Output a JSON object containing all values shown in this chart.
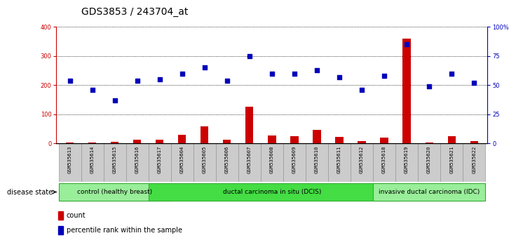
{
  "title": "GDS3853 / 243704_at",
  "samples": [
    "GSM535613",
    "GSM535614",
    "GSM535615",
    "GSM535616",
    "GSM535617",
    "GSM535604",
    "GSM535605",
    "GSM535606",
    "GSM535607",
    "GSM535608",
    "GSM535609",
    "GSM535610",
    "GSM535611",
    "GSM535612",
    "GSM535618",
    "GSM535619",
    "GSM535620",
    "GSM535621",
    "GSM535622"
  ],
  "counts": [
    3,
    4,
    5,
    12,
    13,
    30,
    58,
    13,
    125,
    28,
    25,
    48,
    22,
    8,
    20,
    360,
    3,
    25,
    8
  ],
  "percentiles": [
    54,
    46,
    37,
    54,
    55,
    60,
    65,
    54,
    75,
    60,
    60,
    63,
    57,
    46,
    58,
    85,
    49,
    60,
    52
  ],
  "ylim_left": [
    0,
    400
  ],
  "ylim_right": [
    0,
    100
  ],
  "yticks_left": [
    0,
    100,
    200,
    300,
    400
  ],
  "yticks_right": [
    0,
    25,
    50,
    75,
    100
  ],
  "ytick_labels_right": [
    "0",
    "25",
    "50",
    "75",
    "100%"
  ],
  "bar_color": "#cc0000",
  "dot_color": "#0000bb",
  "groups": [
    {
      "label": "control (healthy breast)",
      "start": 0,
      "end": 4,
      "color": "#99ee99"
    },
    {
      "label": "ductal carcinoma in situ (DCIS)",
      "start": 4,
      "end": 14,
      "color": "#44dd44"
    },
    {
      "label": "invasive ductal carcinoma (IDC)",
      "start": 14,
      "end": 18,
      "color": "#99ee99"
    }
  ],
  "disease_state_label": "disease state",
  "legend_count_label": "count",
  "legend_pct_label": "percentile rank within the sample",
  "title_fontsize": 10,
  "tick_fontsize": 6,
  "axis_color_left": "#cc0000",
  "axis_color_right": "#0000bb",
  "bg_color": "#ffffff",
  "plot_bg_color": "#ffffff",
  "grid_color": "#000000",
  "sample_bg_color": "#cccccc",
  "group_border_color": "#33aa33"
}
